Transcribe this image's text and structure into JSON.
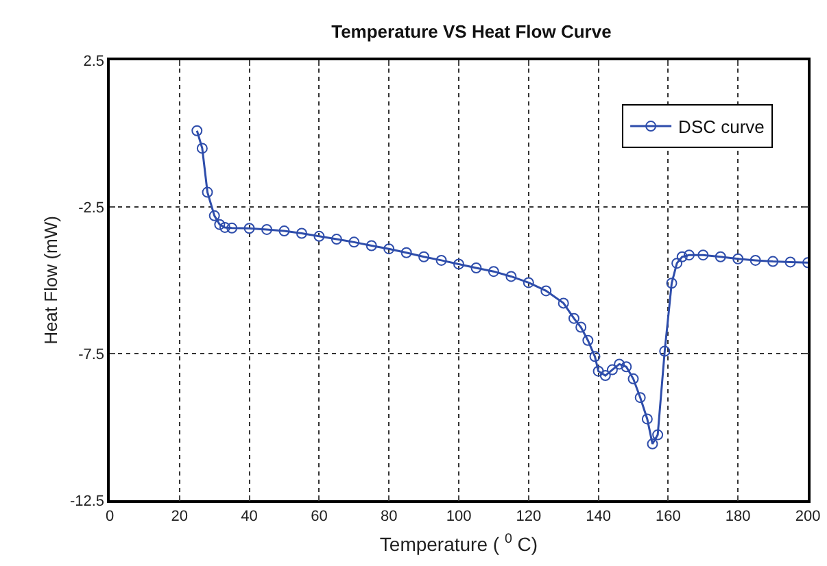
{
  "chart_data": {
    "type": "line",
    "title": "Temperature VS Heat Flow Curve",
    "xlabel": "Temperature ( $^{0}$ C)",
    "ylabel": "Heat Flow (mW)",
    "xlim": [
      0,
      200
    ],
    "xticks": [
      0,
      20,
      40,
      60,
      80,
      100,
      120,
      140,
      160,
      180,
      200
    ],
    "ylim": [
      -12.5,
      2.5
    ],
    "yticks": [
      -12.5,
      -7.5,
      -2.5,
      2.5
    ],
    "grid": true,
    "legend": "top right",
    "marker": "circle",
    "line_style": "solid",
    "series": [
      {
        "name": "DSC curve",
        "color": "#2e4dab",
        "x": [
          25,
          26.5,
          28,
          30,
          31.5,
          33,
          35,
          40,
          45,
          50,
          55,
          60,
          65,
          70,
          75,
          80,
          85,
          90,
          95,
          100,
          105,
          110,
          115,
          120,
          125,
          130,
          133,
          135,
          137,
          139,
          140,
          142,
          144,
          146,
          148,
          150,
          152,
          154,
          155.5,
          157,
          159,
          161,
          162.5,
          164,
          166,
          170,
          175,
          180,
          185,
          190,
          195,
          200
        ],
        "values": [
          0.1,
          -0.5,
          -2.0,
          -2.8,
          -3.1,
          -3.2,
          -3.22,
          -3.23,
          -3.27,
          -3.32,
          -3.4,
          -3.5,
          -3.6,
          -3.7,
          -3.82,
          -3.93,
          -4.06,
          -4.2,
          -4.32,
          -4.45,
          -4.58,
          -4.7,
          -4.87,
          -5.08,
          -5.36,
          -5.78,
          -6.3,
          -6.6,
          -7.05,
          -7.6,
          -8.1,
          -8.25,
          -8.05,
          -7.86,
          -7.95,
          -8.36,
          -9.0,
          -9.73,
          -10.58,
          -10.27,
          -7.42,
          -5.1,
          -4.42,
          -4.2,
          -4.14,
          -4.14,
          -4.2,
          -4.27,
          -4.32,
          -4.36,
          -4.38,
          -4.4
        ]
      }
    ]
  }
}
